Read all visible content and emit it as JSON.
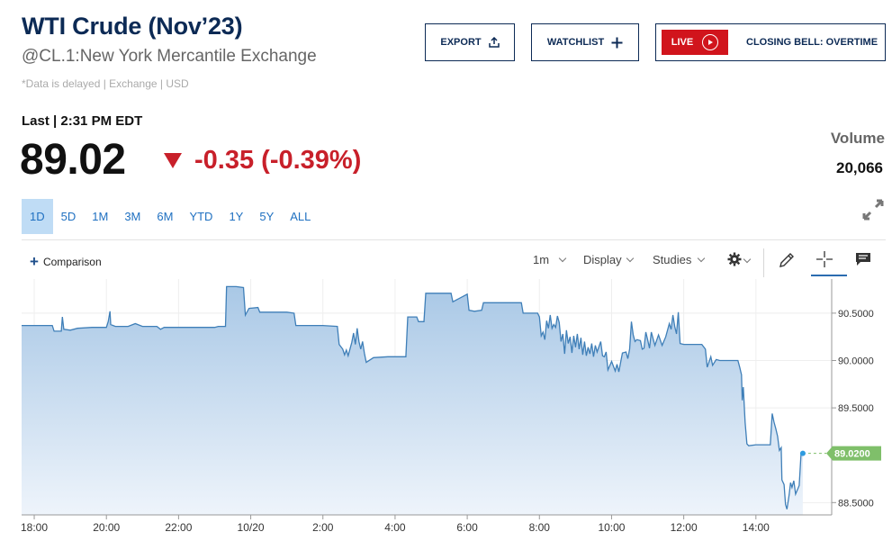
{
  "header": {
    "title": "WTI Crude (Nov’23)",
    "subtitle": "@CL.1:New York Mercantile Exchange",
    "delay_note": "*Data is delayed | Exchange | USD"
  },
  "actions": {
    "export_label": "EXPORT",
    "watchlist_label": "WATCHLIST",
    "live_label": "LIVE",
    "live_show": "CLOSING BELL: OVERTIME"
  },
  "quote": {
    "last_label": "Last | 2:31 PM EDT",
    "price": "89.02",
    "change": "-0.35 (-0.39%)",
    "direction": "down",
    "volume_label": "Volume",
    "volume_value": "20,066"
  },
  "ranges": [
    "1D",
    "5D",
    "1M",
    "3M",
    "6M",
    "YTD",
    "1Y",
    "5Y",
    "ALL"
  ],
  "active_range": "1D",
  "toolbar": {
    "comparison_label": "Comparison",
    "interval_label": "1m",
    "display_label": "Display",
    "studies_label": "Studies",
    "icons": [
      "gear-icon",
      "pencil-icon",
      "crosshair-icon",
      "comment-icon"
    ]
  },
  "colors": {
    "navy": "#0c2a55",
    "down": "#c8202a",
    "line": "#3f7fb8",
    "range_active_bg": "#bfdcf5",
    "last_price_tag": "#7fbf6a"
  },
  "chart_data": {
    "type": "area",
    "x_unit": "hours since 17:00 (prior day)",
    "x_ticks": [
      {
        "t": 1,
        "label": "18:00"
      },
      {
        "t": 3,
        "label": "20:00"
      },
      {
        "t": 5,
        "label": "22:00"
      },
      {
        "t": 7,
        "label": "10/20"
      },
      {
        "t": 9,
        "label": "2:00"
      },
      {
        "t": 11,
        "label": "4:00"
      },
      {
        "t": 13,
        "label": "6:00"
      },
      {
        "t": 15,
        "label": "8:00"
      },
      {
        "t": 17,
        "label": "10:00"
      },
      {
        "t": 19,
        "label": "12:00"
      },
      {
        "t": 21,
        "label": "14:00"
      }
    ],
    "y_ticks": [
      "90.5000",
      "90.0000",
      "89.5000",
      "88.5000"
    ],
    "y_tick_values": [
      90.5,
      90.0,
      89.5,
      88.5
    ],
    "ylim": [
      88.37,
      90.86
    ],
    "xlim": [
      0.65,
      23.1
    ],
    "last_value_label": "89.0200",
    "last_value": 89.02,
    "points": [
      [
        0.65,
        90.37
      ],
      [
        1.5,
        90.37
      ],
      [
        1.55,
        90.31
      ],
      [
        1.75,
        90.31
      ],
      [
        1.78,
        90.46
      ],
      [
        1.82,
        90.33
      ],
      [
        2.0,
        90.32
      ],
      [
        2.2,
        90.34
      ],
      [
        2.6,
        90.35
      ],
      [
        3.0,
        90.35
      ],
      [
        3.05,
        90.41
      ],
      [
        3.1,
        90.52
      ],
      [
        3.12,
        90.38
      ],
      [
        3.25,
        90.36
      ],
      [
        3.6,
        90.36
      ],
      [
        3.8,
        90.39
      ],
      [
        4.0,
        90.36
      ],
      [
        4.4,
        90.36
      ],
      [
        4.5,
        90.33
      ],
      [
        4.6,
        90.35
      ],
      [
        5.0,
        90.35
      ],
      [
        5.5,
        90.35
      ],
      [
        6.0,
        90.35
      ],
      [
        6.1,
        90.36
      ],
      [
        6.3,
        90.36
      ],
      [
        6.33,
        90.78
      ],
      [
        6.6,
        90.78
      ],
      [
        6.8,
        90.77
      ],
      [
        6.85,
        90.48
      ],
      [
        6.95,
        90.55
      ],
      [
        7.2,
        90.56
      ],
      [
        7.25,
        90.51
      ],
      [
        7.5,
        90.51
      ],
      [
        8.0,
        90.51
      ],
      [
        8.2,
        90.5
      ],
      [
        8.25,
        90.37
      ],
      [
        8.5,
        90.37
      ],
      [
        9.0,
        90.37
      ],
      [
        9.4,
        90.36
      ],
      [
        9.45,
        90.17
      ],
      [
        9.55,
        90.12
      ],
      [
        9.6,
        90.06
      ],
      [
        9.65,
        90.11
      ],
      [
        9.7,
        90.05
      ],
      [
        9.8,
        90.19
      ],
      [
        9.85,
        90.29
      ],
      [
        9.9,
        90.17
      ],
      [
        9.95,
        90.34
      ],
      [
        10.0,
        90.2
      ],
      [
        10.05,
        90.12
      ],
      [
        10.1,
        90.2
      ],
      [
        10.15,
        90.08
      ],
      [
        10.2,
        89.98
      ],
      [
        10.4,
        90.03
      ],
      [
        10.8,
        90.04
      ],
      [
        11.3,
        90.04
      ],
      [
        11.35,
        90.46
      ],
      [
        11.6,
        90.46
      ],
      [
        11.65,
        90.41
      ],
      [
        11.8,
        90.41
      ],
      [
        11.85,
        90.71
      ],
      [
        12.3,
        90.71
      ],
      [
        12.55,
        90.71
      ],
      [
        12.6,
        90.62
      ],
      [
        13.0,
        90.7
      ],
      [
        13.05,
        90.53
      ],
      [
        13.2,
        90.52
      ],
      [
        13.4,
        90.53
      ],
      [
        13.45,
        90.61
      ],
      [
        13.8,
        90.61
      ],
      [
        14.5,
        90.61
      ],
      [
        14.55,
        90.5
      ],
      [
        14.95,
        90.5
      ],
      [
        15.0,
        90.46
      ],
      [
        15.05,
        90.26
      ],
      [
        15.1,
        90.3
      ],
      [
        15.15,
        90.22
      ],
      [
        15.2,
        90.42
      ],
      [
        15.25,
        90.34
      ],
      [
        15.3,
        90.48
      ],
      [
        15.35,
        90.34
      ],
      [
        15.4,
        90.38
      ],
      [
        15.45,
        90.35
      ],
      [
        15.5,
        90.47
      ],
      [
        15.55,
        90.4
      ],
      [
        15.6,
        90.2
      ],
      [
        15.65,
        90.28
      ],
      [
        15.7,
        90.07
      ],
      [
        15.75,
        90.32
      ],
      [
        15.8,
        90.18
      ],
      [
        15.85,
        90.25
      ],
      [
        15.9,
        90.08
      ],
      [
        15.95,
        90.26
      ],
      [
        16.0,
        90.14
      ],
      [
        16.05,
        90.28
      ],
      [
        16.1,
        90.12
      ],
      [
        16.15,
        90.24
      ],
      [
        16.2,
        90.06
      ],
      [
        16.25,
        90.2
      ],
      [
        16.3,
        90.05
      ],
      [
        16.35,
        90.14
      ],
      [
        16.4,
        90.07
      ],
      [
        16.45,
        90.18
      ],
      [
        16.5,
        90.04
      ],
      [
        16.55,
        90.16
      ],
      [
        16.6,
        90.09
      ],
      [
        16.7,
        90.2
      ],
      [
        16.75,
        90.05
      ],
      [
        16.8,
        90.04
      ],
      [
        16.85,
        90.09
      ],
      [
        16.9,
        89.9
      ],
      [
        17.0,
        89.99
      ],
      [
        17.05,
        89.94
      ],
      [
        17.1,
        89.89
      ],
      [
        17.15,
        89.96
      ],
      [
        17.2,
        89.88
      ],
      [
        17.3,
        90.08
      ],
      [
        17.4,
        90.09
      ],
      [
        17.45,
        90.02
      ],
      [
        17.5,
        90.12
      ],
      [
        17.55,
        90.41
      ],
      [
        17.6,
        90.27
      ],
      [
        17.65,
        90.2
      ],
      [
        17.7,
        90.22
      ],
      [
        17.8,
        90.21
      ],
      [
        17.85,
        90.12
      ],
      [
        17.9,
        90.13
      ],
      [
        17.95,
        90.3
      ],
      [
        18.0,
        90.22
      ],
      [
        18.05,
        90.13
      ],
      [
        18.1,
        90.3
      ],
      [
        18.2,
        90.16
      ],
      [
        18.3,
        90.27
      ],
      [
        18.4,
        90.16
      ],
      [
        18.5,
        90.25
      ],
      [
        18.6,
        90.39
      ],
      [
        18.65,
        90.33
      ],
      [
        18.7,
        90.48
      ],
      [
        18.75,
        90.36
      ],
      [
        18.8,
        90.28
      ],
      [
        18.85,
        90.51
      ],
      [
        18.9,
        90.18
      ],
      [
        19.0,
        90.17
      ],
      [
        19.3,
        90.17
      ],
      [
        19.5,
        90.17
      ],
      [
        19.6,
        90.12
      ],
      [
        19.65,
        89.93
      ],
      [
        19.75,
        90.04
      ],
      [
        19.8,
        89.95
      ],
      [
        19.9,
        90.01
      ],
      [
        20.0,
        90.0
      ],
      [
        20.5,
        90.0
      ],
      [
        20.55,
        89.93
      ],
      [
        20.6,
        89.85
      ],
      [
        20.62,
        89.58
      ],
      [
        20.65,
        89.72
      ],
      [
        20.7,
        89.35
      ],
      [
        20.75,
        89.12
      ],
      [
        20.8,
        89.1
      ],
      [
        21.0,
        89.11
      ],
      [
        21.4,
        89.11
      ],
      [
        21.45,
        89.44
      ],
      [
        21.5,
        89.35
      ],
      [
        21.55,
        89.28
      ],
      [
        21.6,
        89.2
      ],
      [
        21.65,
        89.05
      ],
      [
        21.7,
        89.08
      ],
      [
        21.72,
        88.74
      ],
      [
        21.78,
        88.69
      ],
      [
        21.82,
        88.48
      ],
      [
        21.86,
        88.43
      ],
      [
        21.92,
        88.58
      ],
      [
        21.96,
        88.71
      ],
      [
        22.0,
        88.66
      ],
      [
        22.05,
        88.73
      ],
      [
        22.1,
        88.59
      ],
      [
        22.2,
        88.68
      ],
      [
        22.25,
        89.01
      ],
      [
        22.3,
        89.02
      ]
    ]
  }
}
